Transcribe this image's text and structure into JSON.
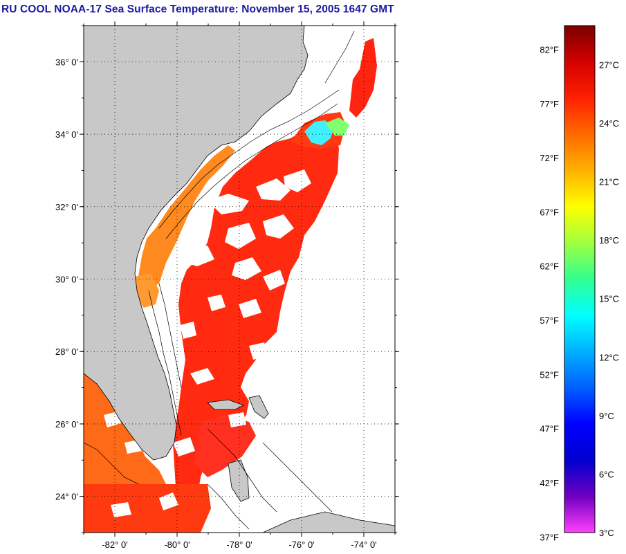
{
  "title": "RU COOL  NOAA-17  Sea Surface Temperature:  November 15, 2005 1647 GMT",
  "map": {
    "lon_range": [
      -83,
      -73
    ],
    "lat_range": [
      23,
      37
    ],
    "lat_labels": [
      {
        "value": 36,
        "text": "36° 0'"
      },
      {
        "value": 34,
        "text": "34° 0'"
      },
      {
        "value": 32,
        "text": "32° 0'"
      },
      {
        "value": 30,
        "text": "30° 0'"
      },
      {
        "value": 28,
        "text": "28° 0'"
      },
      {
        "value": 26,
        "text": "26° 0'"
      },
      {
        "value": 24,
        "text": "24° 0'"
      }
    ],
    "lon_labels": [
      {
        "value": -82,
        "text": "-82° 0'"
      },
      {
        "value": -80,
        "text": "-80° 0'"
      },
      {
        "value": -78,
        "text": "-78° 0'"
      },
      {
        "value": -76,
        "text": "-76° 0'"
      },
      {
        "value": -74,
        "text": "-74° 0'"
      }
    ],
    "land_color": "#c8c8c8",
    "no_data_color": "#ffffff"
  },
  "colorbar": {
    "range_c": [
      3,
      29
    ],
    "fahrenheit_labels": [
      "82°F",
      "77°F",
      "72°F",
      "67°F",
      "62°F",
      "57°F",
      "52°F",
      "47°F",
      "42°F",
      "37°F"
    ],
    "celsius_labels": [
      "27°C",
      "24°C",
      "21°C",
      "18°C",
      "15°C",
      "12°C",
      "9°C",
      "6°C",
      "3°C"
    ],
    "colors": [
      "#7a0000",
      "#d40000",
      "#ff2000",
      "#ff6a00",
      "#ffb000",
      "#ffff00",
      "#a0ff40",
      "#30ff90",
      "#00ffff",
      "#00b0ff",
      "#0060ff",
      "#0000ff",
      "#0000d0",
      "#7000c0",
      "#ff40ff"
    ]
  }
}
